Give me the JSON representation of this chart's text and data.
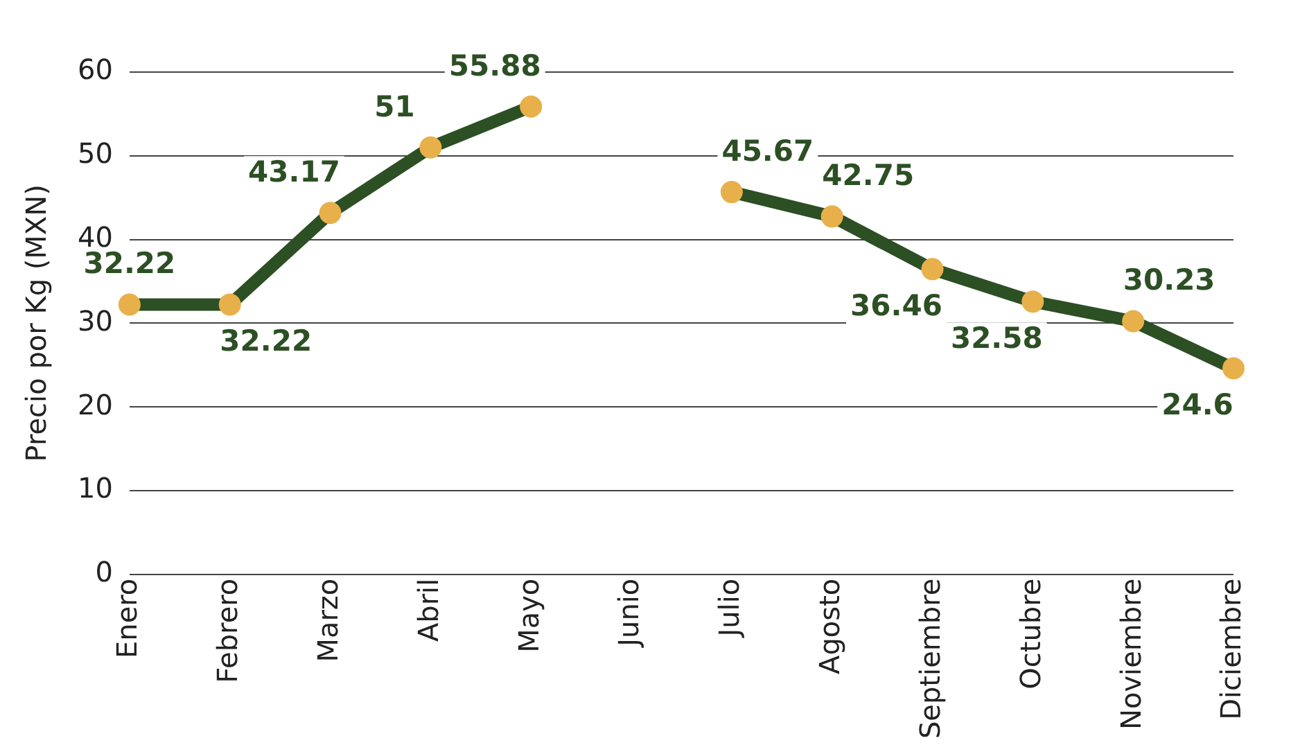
{
  "chart_data": {
    "type": "line",
    "ylabel": "Precio por Kg (MXN)",
    "categories": [
      "Enero",
      "Febrero",
      "Marzo",
      "Abril",
      "Mayo",
      "Junio",
      "Julio",
      "Agosto",
      "Septiembre",
      "Octubre",
      "Noviembre",
      "Diciembre"
    ],
    "series": [
      {
        "color": "#2c4f24",
        "values": [
          32.22,
          32.22,
          43.17,
          51,
          55.88,
          null,
          45.67,
          42.75,
          36.46,
          32.58,
          30.23,
          24.6
        ]
      }
    ],
    "ylim": [
      0,
      60
    ],
    "yticks": [
      0,
      10,
      20,
      30,
      40,
      50,
      60
    ],
    "grid": "y",
    "legend": false,
    "marker": "circle",
    "line_style": "solid",
    "data_labels": true
  }
}
